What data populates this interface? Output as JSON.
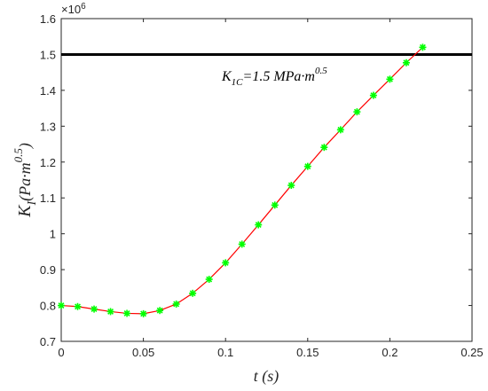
{
  "chart_data": {
    "type": "line",
    "x_axis": {
      "label": "t (s)",
      "min": 0,
      "max": 0.25,
      "ticks": [
        "0",
        "0.05",
        "0.1",
        "0.15",
        "0.2",
        "0.25"
      ]
    },
    "y_axis": {
      "label_main": "K",
      "label_sub": "I",
      "label_rest": "(Pa·m",
      "label_sup": "0.5",
      "label_close": ")",
      "min": 0.7,
      "max": 1.6,
      "ticks": [
        "0.7",
        "0.8",
        "0.9",
        "1",
        "1.1",
        "1.2",
        "1.3",
        "1.4",
        "1.5",
        "1.6"
      ],
      "exponent_base": "×10",
      "exponent_power": "6"
    },
    "threshold": {
      "value": 1.5,
      "color": "#000000",
      "label_main": "K",
      "label_sub": "1C",
      "label_rest": "=1.5 MPa·m",
      "label_sup": "0.5"
    },
    "series": [
      {
        "line_color": "#ff0000",
        "marker_color": "#00ff00",
        "marker": "asterisk",
        "x": [
          0,
          0.01,
          0.02,
          0.03,
          0.04,
          0.05,
          0.06,
          0.07,
          0.08,
          0.09,
          0.1,
          0.11,
          0.12,
          0.13,
          0.14,
          0.15,
          0.16,
          0.17,
          0.18,
          0.19,
          0.2,
          0.21,
          0.22
        ],
        "y": [
          0.8,
          0.797,
          0.79,
          0.783,
          0.778,
          0.777,
          0.786,
          0.804,
          0.834,
          0.873,
          0.919,
          0.971,
          1.025,
          1.08,
          1.135,
          1.188,
          1.241,
          1.29,
          1.34,
          1.386,
          1.431,
          1.477,
          1.52
        ]
      }
    ],
    "grid": false,
    "box": true
  }
}
